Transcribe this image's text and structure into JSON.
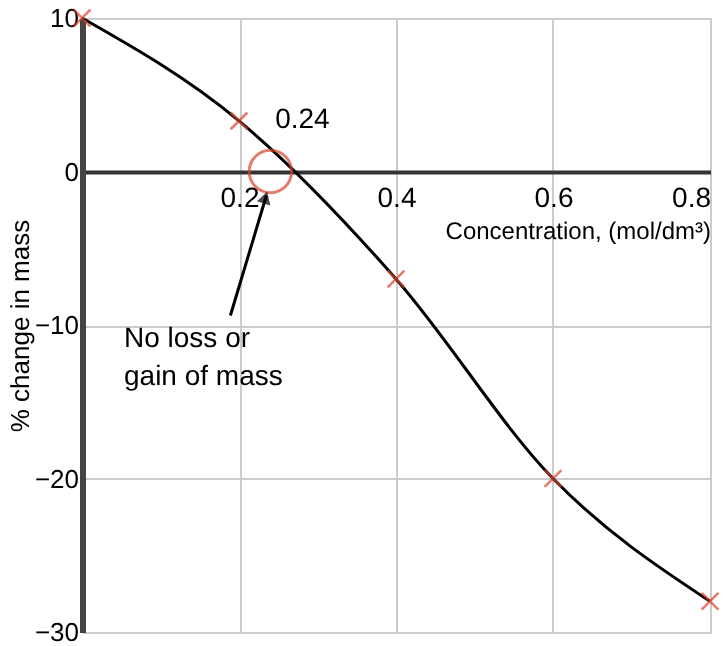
{
  "chart_data": {
    "type": "scatter",
    "xlabel": "Concentration, (mol/dm³)",
    "ylabel": "% change in mass",
    "x": [
      0,
      0.2,
      0.4,
      0.6,
      0.8
    ],
    "series": [
      {
        "type": "line",
        "color": "#000000",
        "values": [
          10,
          3.3,
          -7,
          -20,
          -28
        ],
        "marker": "none",
        "line_style": "solid"
      },
      {
        "color": "#d9452f",
        "values": [
          10,
          3.3,
          -7,
          -20,
          -28
        ],
        "marker": "cross"
      }
    ],
    "xlim": [
      0,
      0.8
    ],
    "xticks": [
      0.2,
      0.4,
      0.6,
      0.8
    ],
    "ylim": [
      -30,
      10
    ],
    "yticks": [
      10,
      0,
      -10,
      -20,
      -30
    ],
    "grid": true,
    "annotations": [
      {
        "text": "0.24",
        "x": 0.24,
        "y": 0
      },
      "No loss or\ngain of mass"
    ]
  }
}
